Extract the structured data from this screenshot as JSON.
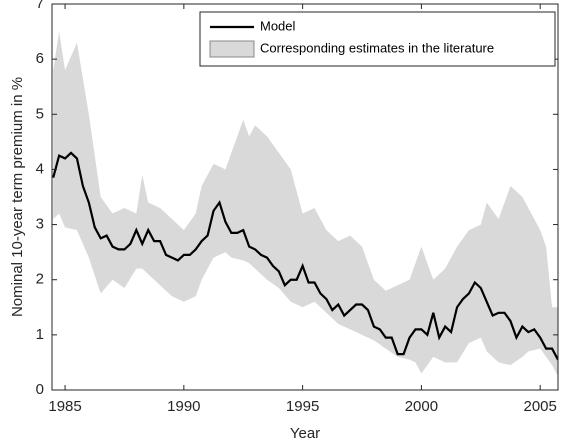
{
  "chart_data": {
    "type": "line",
    "xlabel": "Year",
    "ylabel": "Nominal 10-year term premium in %",
    "xlim": [
      1984.45,
      2005.75
    ],
    "xticks": [
      1985,
      1990,
      1995,
      2000,
      2005
    ],
    "ylim": [
      0,
      7
    ],
    "yticks": [
      0,
      1,
      2,
      3,
      4,
      5,
      6,
      7
    ],
    "legend": "upper right",
    "series": [
      {
        "name": "Model",
        "color": "#000000",
        "type": "line",
        "x": [
          1984.5,
          1984.75,
          1985,
          1985.25,
          1985.5,
          1985.75,
          1986,
          1986.25,
          1986.5,
          1986.75,
          1987,
          1987.25,
          1987.5,
          1987.75,
          1988,
          1988.25,
          1988.5,
          1988.75,
          1989,
          1989.25,
          1989.5,
          1989.75,
          1990,
          1990.25,
          1990.5,
          1990.75,
          1991,
          1991.25,
          1991.5,
          1991.75,
          1992,
          1992.25,
          1992.5,
          1992.75,
          1993,
          1993.25,
          1993.5,
          1993.75,
          1994,
          1994.25,
          1994.5,
          1994.75,
          1995,
          1995.25,
          1995.5,
          1995.75,
          1996,
          1996.25,
          1996.5,
          1996.75,
          1997,
          1997.25,
          1997.5,
          1997.75,
          1998,
          1998.25,
          1998.5,
          1998.75,
          1999,
          1999.25,
          1999.5,
          1999.75,
          2000,
          2000.25,
          2000.5,
          2000.75,
          2001,
          2001.25,
          2001.5,
          2001.75,
          2002,
          2002.25,
          2002.5,
          2002.75,
          2003,
          2003.25,
          2003.5,
          2003.75,
          2004,
          2004.25,
          2004.5,
          2004.75,
          2005,
          2005.25,
          2005.5,
          2005.75
        ],
        "values": [
          3.85,
          4.25,
          4.2,
          4.3,
          4.2,
          3.7,
          3.4,
          2.95,
          2.75,
          2.8,
          2.6,
          2.55,
          2.55,
          2.65,
          2.9,
          2.65,
          2.9,
          2.7,
          2.7,
          2.45,
          2.4,
          2.35,
          2.45,
          2.45,
          2.55,
          2.7,
          2.8,
          3.25,
          3.4,
          3.05,
          2.85,
          2.85,
          2.9,
          2.6,
          2.55,
          2.45,
          2.4,
          2.25,
          2.15,
          1.9,
          2.0,
          2.0,
          2.25,
          1.95,
          1.95,
          1.75,
          1.65,
          1.45,
          1.55,
          1.35,
          1.45,
          1.55,
          1.55,
          1.45,
          1.15,
          1.1,
          0.95,
          0.95,
          0.65,
          0.65,
          0.95,
          1.1,
          1.1,
          1.0,
          1.4,
          0.95,
          1.15,
          1.05,
          1.5,
          1.65,
          1.75,
          1.95,
          1.85,
          1.6,
          1.35,
          1.4,
          1.4,
          1.25,
          0.95,
          1.15,
          1.05,
          1.1,
          0.95,
          0.75,
          0.75,
          0.55
        ]
      },
      {
        "name": "Corresponding estimates in the literature",
        "color": "#d9d9d9",
        "type": "band",
        "x": [
          1984.5,
          1984.75,
          1985,
          1985.5,
          1986,
          1986.5,
          1987,
          1987.5,
          1988,
          1988.25,
          1988.5,
          1989,
          1989.5,
          1990,
          1990.5,
          1990.75,
          1991.25,
          1991.75,
          1992,
          1992.5,
          1992.75,
          1993,
          1993.5,
          1994,
          1994.5,
          1995,
          1995.5,
          1996,
          1996.5,
          1997,
          1997.5,
          1998,
          1998.5,
          1999,
          1999.5,
          1999.75,
          2000,
          2000.5,
          2001,
          2001.5,
          2002,
          2002.5,
          2002.75,
          2003.25,
          2003.75,
          2004.25,
          2004.5,
          2005,
          2005.25,
          2005.5,
          2005.75
        ],
        "upper": [
          5.8,
          6.5,
          5.8,
          6.3,
          5.0,
          3.5,
          3.2,
          3.3,
          3.2,
          3.9,
          3.4,
          3.3,
          3.1,
          2.9,
          3.2,
          3.7,
          4.1,
          4.0,
          4.3,
          4.9,
          4.6,
          4.8,
          4.6,
          4.3,
          4.0,
          3.2,
          3.3,
          2.9,
          2.7,
          2.8,
          2.6,
          2.0,
          1.8,
          1.9,
          2.0,
          2.3,
          2.6,
          2.0,
          2.2,
          2.6,
          2.9,
          3.0,
          3.4,
          3.1,
          3.7,
          3.5,
          3.3,
          2.9,
          2.6,
          1.5,
          1.5
        ],
        "lower": [
          3.1,
          3.2,
          2.95,
          2.9,
          2.4,
          1.75,
          2.0,
          1.85,
          2.2,
          2.2,
          2.1,
          1.9,
          1.7,
          1.6,
          1.7,
          2.0,
          2.4,
          2.5,
          2.4,
          2.35,
          2.3,
          2.2,
          2.0,
          1.85,
          1.6,
          1.5,
          1.6,
          1.4,
          1.2,
          1.1,
          1.0,
          0.9,
          0.75,
          0.6,
          0.55,
          0.5,
          0.3,
          0.6,
          0.5,
          0.5,
          0.85,
          0.95,
          0.7,
          0.5,
          0.45,
          0.6,
          0.7,
          0.75,
          0.6,
          0.45,
          0.25
        ]
      }
    ]
  }
}
